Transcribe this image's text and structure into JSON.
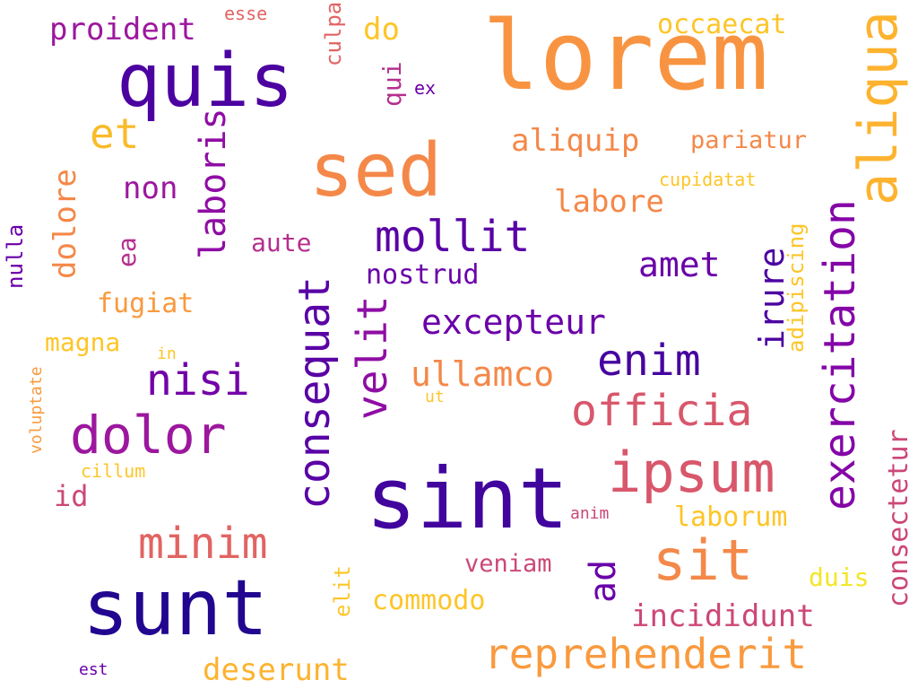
{
  "words": [
    {
      "text": "lorem",
      "color": "#f89441",
      "rot": 0
    },
    {
      "text": "quis",
      "color": "#4c02a1",
      "rot": 0
    },
    {
      "text": "sed",
      "color": "#f48849",
      "rot": 0
    },
    {
      "text": "sint",
      "color": "#41049d",
      "rot": 0
    },
    {
      "text": "sunt",
      "color": "#220690",
      "rot": 0
    },
    {
      "text": "aliqua",
      "color": "#fdb32f",
      "rot": 90
    },
    {
      "text": "ipsum",
      "color": "#d8576b",
      "rot": 0
    },
    {
      "text": "dolor",
      "color": "#9c179e",
      "rot": 0
    },
    {
      "text": "sit",
      "color": "#f48849",
      "rot": 0
    },
    {
      "text": "reprehenderit",
      "color": "#f99a3e",
      "rot": 0
    },
    {
      "text": "exercitation",
      "color": "#8405a7",
      "rot": 90
    },
    {
      "text": "consequat",
      "color": "#5901a5",
      "rot": 90
    },
    {
      "text": "officia",
      "color": "#d8576b",
      "rot": 0
    },
    {
      "text": "mollit",
      "color": "#5901a5",
      "rot": 0
    },
    {
      "text": "enim",
      "color": "#46039f",
      "rot": 0
    },
    {
      "text": "minim",
      "color": "#e16462",
      "rot": 0
    },
    {
      "text": "nisi",
      "color": "#7201a8",
      "rot": 0
    },
    {
      "text": "velit",
      "color": "#8f0da4",
      "rot": 90
    },
    {
      "text": "laboris",
      "color": "#8f0da4",
      "rot": 90
    },
    {
      "text": "excepteur",
      "color": "#6a00a8",
      "rot": 0
    },
    {
      "text": "ullamco",
      "color": "#f48849",
      "rot": 0
    },
    {
      "text": "amet",
      "color": "#6a00a8",
      "rot": 0
    },
    {
      "text": "irure",
      "color": "#4c02a1",
      "rot": 90
    },
    {
      "text": "ad",
      "color": "#6a00a8",
      "rot": 90
    },
    {
      "text": "dolore",
      "color": "#f48849",
      "rot": 90
    },
    {
      "text": "et",
      "color": "#f9bb2b",
      "rot": 0
    },
    {
      "text": "aliquip",
      "color": "#f48849",
      "rot": 0
    },
    {
      "text": "deserunt",
      "color": "#fdb32f",
      "rot": 0
    },
    {
      "text": "incididunt",
      "color": "#cc4778",
      "rot": 0
    },
    {
      "text": "consectetur",
      "color": "#cc4778",
      "rot": 90
    },
    {
      "text": "proident",
      "color": "#9c179e",
      "rot": 0
    },
    {
      "text": "labore",
      "color": "#f48849",
      "rot": 0
    },
    {
      "text": "pariatur",
      "color": "#f48849",
      "rot": 0
    },
    {
      "text": "occaecat",
      "color": "#fdc527",
      "rot": 0
    },
    {
      "text": "non",
      "color": "#9c179e",
      "rot": 0
    },
    {
      "text": "nostrud",
      "color": "#6a00a8",
      "rot": 0
    },
    {
      "text": "do",
      "color": "#fdc527",
      "rot": 0
    },
    {
      "text": "commodo",
      "color": "#fdc527",
      "rot": 0
    },
    {
      "text": "laborum",
      "color": "#fdc527",
      "rot": 0
    },
    {
      "text": "veniam",
      "color": "#cc4778",
      "rot": 0
    },
    {
      "text": "ea",
      "color": "#b52f8c",
      "rot": 90
    },
    {
      "text": "aute",
      "color": "#b52f8c",
      "rot": 0
    },
    {
      "text": "fugiat",
      "color": "#f99a3e",
      "rot": 0
    },
    {
      "text": "magna",
      "color": "#fdc527",
      "rot": 0
    },
    {
      "text": "adipiscing",
      "color": "#fdc527",
      "rot": 90
    },
    {
      "text": "duis",
      "color": "#f3e626",
      "rot": 0
    },
    {
      "text": "id",
      "color": "#cc4778",
      "rot": 0
    },
    {
      "text": "qui",
      "color": "#b52f8c",
      "rot": 90
    },
    {
      "text": "culpa",
      "color": "#e16462",
      "rot": 90
    },
    {
      "text": "elit",
      "color": "#fdc527",
      "rot": 90
    },
    {
      "text": "nulla",
      "color": "#6a00a8",
      "rot": 90
    },
    {
      "text": "cupidatat",
      "color": "#fdc527",
      "rot": 0
    },
    {
      "text": "voluptate",
      "color": "#f99a3e",
      "rot": 90
    },
    {
      "text": "cillum",
      "color": "#fdc527",
      "rot": 0
    },
    {
      "text": "esse",
      "color": "#e16462",
      "rot": 0
    },
    {
      "text": "ex",
      "color": "#6a00a8",
      "rot": 0
    },
    {
      "text": "in",
      "color": "#fdc527",
      "rot": 0
    },
    {
      "text": "ut",
      "color": "#fdc527",
      "rot": 0
    },
    {
      "text": "anim",
      "color": "#cc4778",
      "rot": 0
    },
    {
      "text": "est",
      "color": "#6a00a8",
      "rot": 0
    }
  ]
}
